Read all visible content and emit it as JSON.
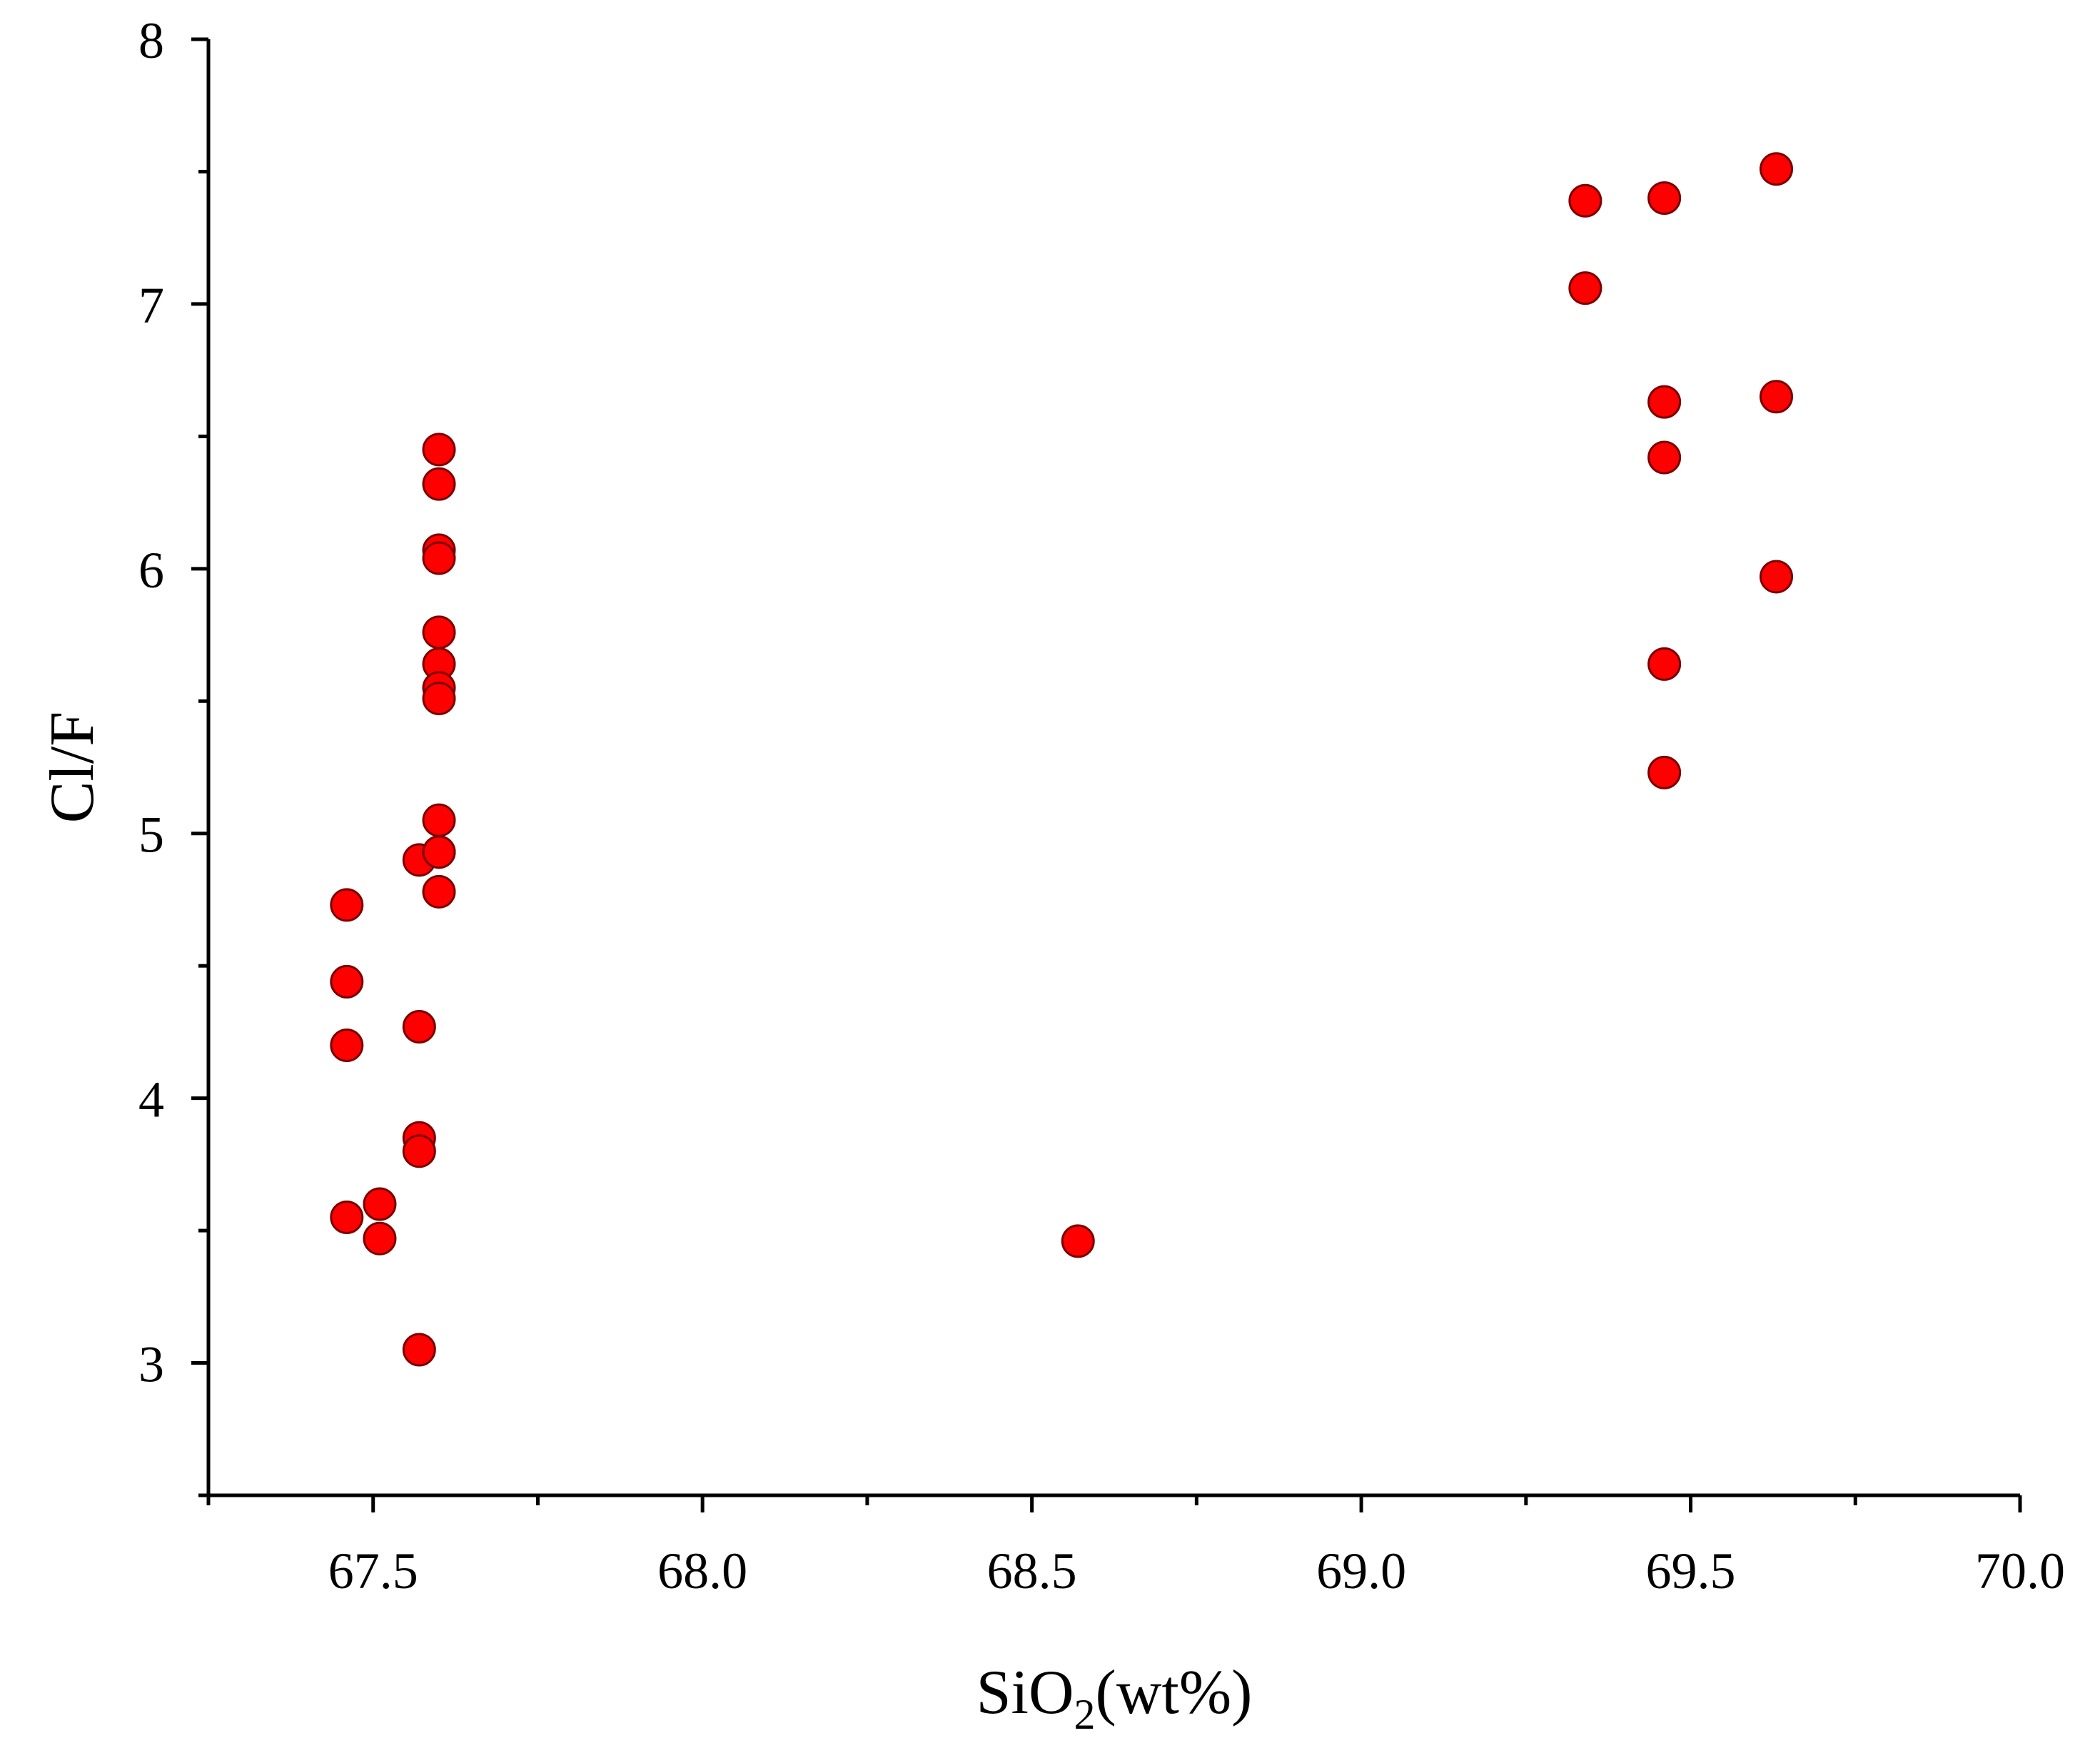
{
  "chart_data": {
    "type": "scatter",
    "title": "",
    "xlabel": "SiO2(wt%)",
    "xlabel_main": "SiO",
    "xlabel_sub": "2",
    "xlabel_tail": "(wt%)",
    "ylabel": "Cl/F",
    "xlim": [
      67.25,
      70.0
    ],
    "ylim": [
      2.5,
      8.0
    ],
    "x_major_ticks": [
      67.5,
      68.0,
      68.5,
      69.0,
      69.5,
      70.0
    ],
    "x_tick_labels": [
      "67.5",
      "68.0",
      "68.5",
      "69.0",
      "69.5",
      "70.0"
    ],
    "x_minor_ticks": [
      67.25,
      67.75,
      68.25,
      68.75,
      69.25,
      69.75
    ],
    "y_major_ticks": [
      3,
      4,
      5,
      6,
      7,
      8
    ],
    "y_tick_labels": [
      "3",
      "4",
      "5",
      "6",
      "7",
      "8"
    ],
    "y_minor_ticks": [
      2.5,
      3.5,
      4.5,
      5.5,
      6.5,
      7.5
    ],
    "grid": false,
    "legend": "none",
    "marker_color": "#ff0000",
    "marker_edge_color": "#7a0000",
    "series": [
      {
        "x": [
          67.46,
          67.46,
          67.46,
          67.46,
          67.51,
          67.51,
          67.57,
          67.57,
          67.57,
          67.57,
          67.57,
          67.6,
          67.6,
          67.6,
          67.6,
          67.6,
          67.6,
          67.6,
          67.6,
          67.6,
          67.6,
          67.6,
          67.6,
          68.57,
          69.34,
          69.34,
          69.46,
          69.46,
          69.46,
          69.46,
          69.46,
          69.63,
          69.63,
          69.63
        ],
        "y": [
          4.73,
          4.44,
          4.2,
          3.55,
          3.6,
          3.47,
          4.9,
          4.27,
          3.85,
          3.8,
          3.05,
          6.45,
          6.32,
          6.07,
          6.04,
          5.76,
          5.64,
          5.55,
          5.51,
          5.05,
          4.93,
          4.78,
          4.93,
          3.46,
          7.39,
          7.06,
          7.4,
          6.63,
          6.42,
          5.64,
          5.23,
          7.51,
          6.65,
          5.97
        ]
      }
    ]
  }
}
